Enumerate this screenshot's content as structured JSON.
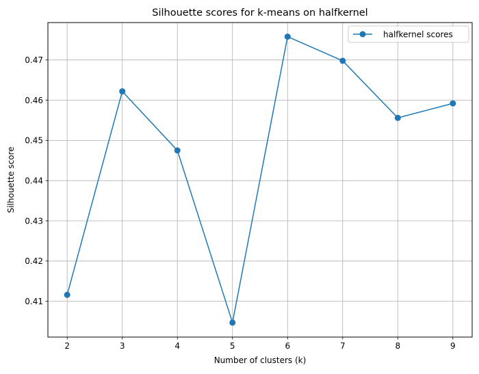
{
  "chart_data": {
    "type": "line",
    "title": "Silhouette scores for k-means on halfkernel",
    "xlabel": "Number of clusters (k)",
    "ylabel": "Silhouette score",
    "x": [
      2,
      3,
      4,
      5,
      6,
      7,
      8,
      9
    ],
    "xticks": [
      "2",
      "3",
      "4",
      "5",
      "6",
      "7",
      "8",
      "9"
    ],
    "xlim": [
      1.65,
      9.35
    ],
    "yticks": [
      "0.41",
      "0.42",
      "0.43",
      "0.44",
      "0.45",
      "0.46",
      "0.47"
    ],
    "ylim": [
      0.4011,
      0.4793
    ],
    "grid": true,
    "legend_position": "top-right",
    "series": [
      {
        "name": "halfkernel scores",
        "color": "#1f77b4",
        "marker": "circle",
        "values": [
          0.4116,
          0.4622,
          0.4475,
          0.4047,
          0.4758,
          0.4698,
          0.4556,
          0.4592
        ]
      }
    ]
  }
}
